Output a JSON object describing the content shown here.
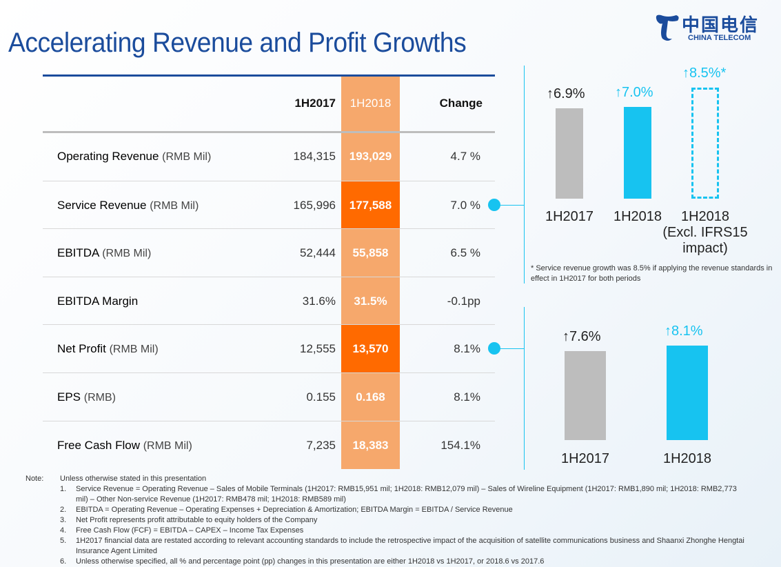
{
  "title": "Accelerating Revenue and Profit Growths",
  "logo": {
    "cn": "中国电信",
    "en": "CHINA TELECOM"
  },
  "table": {
    "headers": [
      "",
      "1H2017",
      "1H2018",
      "Change"
    ],
    "rows": [
      {
        "label": "Operating Revenue",
        "unit": "(RMB Mil)",
        "v2017": "184,315",
        "v2018": "193,029",
        "change": "4.7 %",
        "highlight": false
      },
      {
        "label": "Service Revenue",
        "unit": "(RMB Mil)",
        "v2017": "165,996",
        "v2018": "177,588",
        "change": "7.0 %",
        "highlight": true
      },
      {
        "label": "EBITDA",
        "unit": "(RMB Mil)",
        "v2017": "52,444",
        "v2018": "55,858",
        "change": "6.5 %",
        "highlight": false
      },
      {
        "label": "EBITDA Margin",
        "unit": "",
        "v2017": "31.6%",
        "v2018": "31.5%",
        "change": "-0.1pp",
        "highlight": false
      },
      {
        "label": "Net Profit",
        "unit": "(RMB Mil)",
        "v2017": "12,555",
        "v2018": "13,570",
        "change": "8.1%",
        "highlight": true
      },
      {
        "label": "EPS",
        "unit": "(RMB)",
        "v2017": "0.155",
        "v2018": "0.168",
        "change": "8.1%",
        "highlight": false
      },
      {
        "label": "Free Cash Flow",
        "unit": "(RMB Mil)",
        "v2017": "7,235",
        "v2018": "18,383",
        "change": "154.1%",
        "highlight": false
      }
    ]
  },
  "colors": {
    "title": "#1b4c9c",
    "orange_light": "#f6a86c",
    "orange_dark": "#ff6a00",
    "cyan": "#17c3f0",
    "gray": "#bdbdbd"
  },
  "chart_data": [
    {
      "type": "bar",
      "categories": [
        "1H2017",
        "1H2018",
        "1H2018 (Excl. IFRS15 impact)"
      ],
      "values": [
        6.9,
        7.0,
        8.5
      ],
      "labels": [
        "6.9%",
        "7.0%",
        "8.5%*"
      ],
      "category_lines": [
        [
          "1H2017"
        ],
        [
          "1H2018"
        ],
        [
          "1H2018",
          "(Excl. IFRS15",
          "impact)"
        ]
      ],
      "footnote": "* Service revenue growth was 8.5% if applying the revenue standards in effect in 1H2017 for both periods"
    },
    {
      "type": "bar",
      "categories": [
        "1H2017",
        "1H2018"
      ],
      "values": [
        7.6,
        8.1
      ],
      "labels": [
        "7.6%",
        "8.1%"
      ]
    }
  ],
  "notes": {
    "label": "Note:",
    "intro": "Unless otherwise stated in this presentation",
    "items": [
      {
        "n": "1.",
        "text": "Service Revenue = Operating Revenue – Sales of Mobile Terminals (1H2017: RMB15,951 mil; 1H2018: RMB12,079 mil) – Sales of Wireline Equipment (1H2017: RMB1,890 mil; 1H2018: RMB2,773 mil) – Other Non-service Revenue (1H2017: RMB478 mil; 1H2018: RMB589 mil)"
      },
      {
        "n": "2.",
        "text": "EBITDA = Operating Revenue – Operating Expenses + Depreciation & Amortization; EBITDA Margin = EBITDA / Service Revenue"
      },
      {
        "n": "3.",
        "text": "Net Profit represents profit attributable to equity holders of the Company"
      },
      {
        "n": "4.",
        "text": "Free Cash Flow (FCF) = EBITDA – CAPEX – Income Tax Expenses"
      },
      {
        "n": "5.",
        "text": "1H2017 financial data are restated according to relevant accounting standards to include the retrospective impact of the acquisition of satellite communications business and Shaanxi Zhonghe Hengtai Insurance Agent Limited"
      },
      {
        "n": "6.",
        "text": "Unless otherwise specified, all % and percentage point (pp) changes in this presentation are either 1H2018 vs 1H2017, or 2018.6 vs 2017.6"
      }
    ]
  }
}
